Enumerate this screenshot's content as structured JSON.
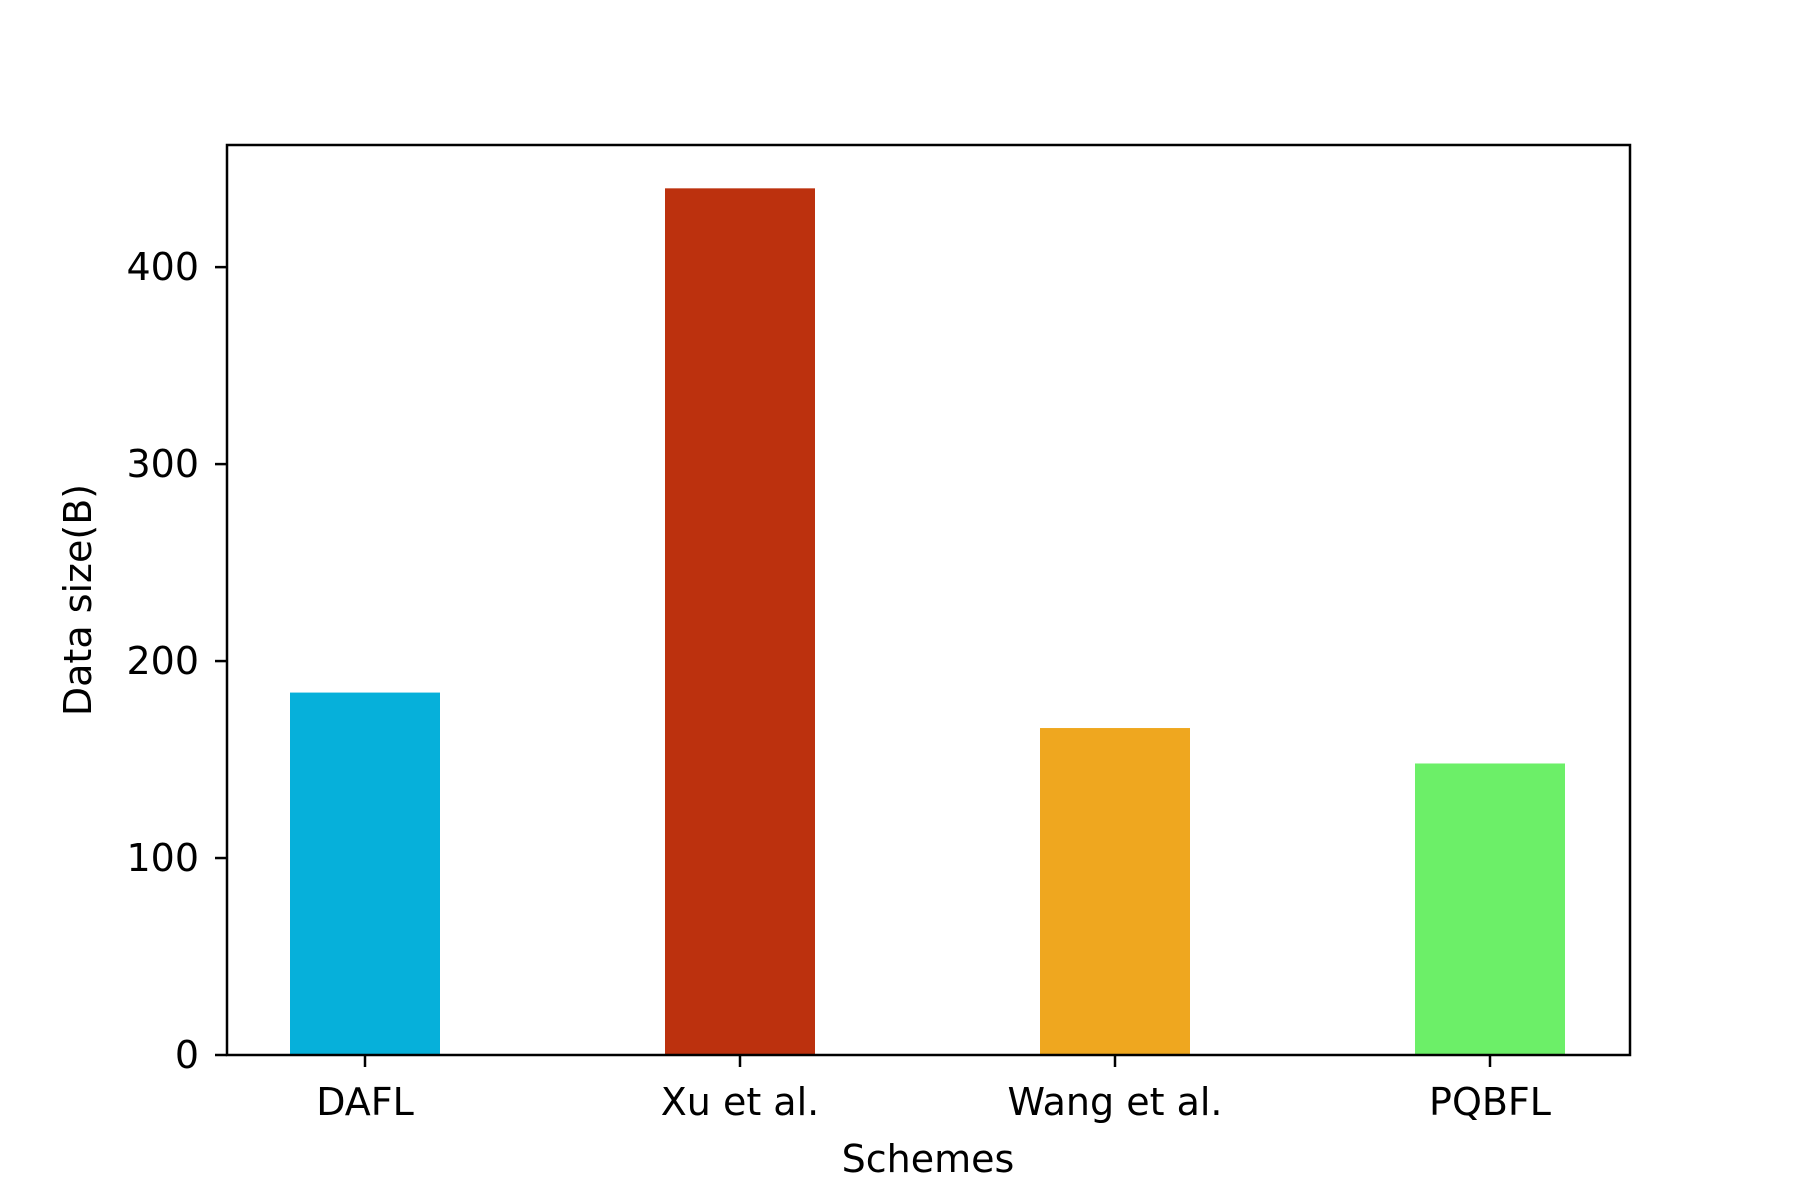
{
  "chart_data": {
    "type": "bar",
    "title": "",
    "xlabel": "Schemes",
    "ylabel": "Data size(B)",
    "categories": [
      "DAFL",
      "Xu et al.",
      "Wang et al.",
      "PQBFL"
    ],
    "values": [
      184,
      440,
      166,
      148
    ],
    "colors": [
      "#06B0DA",
      "#BC310E",
      "#EFA71F",
      "#6CEF68"
    ],
    "ylim": [
      0,
      462
    ],
    "yticks": [
      0,
      100,
      200,
      300,
      400
    ],
    "grid": false,
    "legend": "none"
  }
}
